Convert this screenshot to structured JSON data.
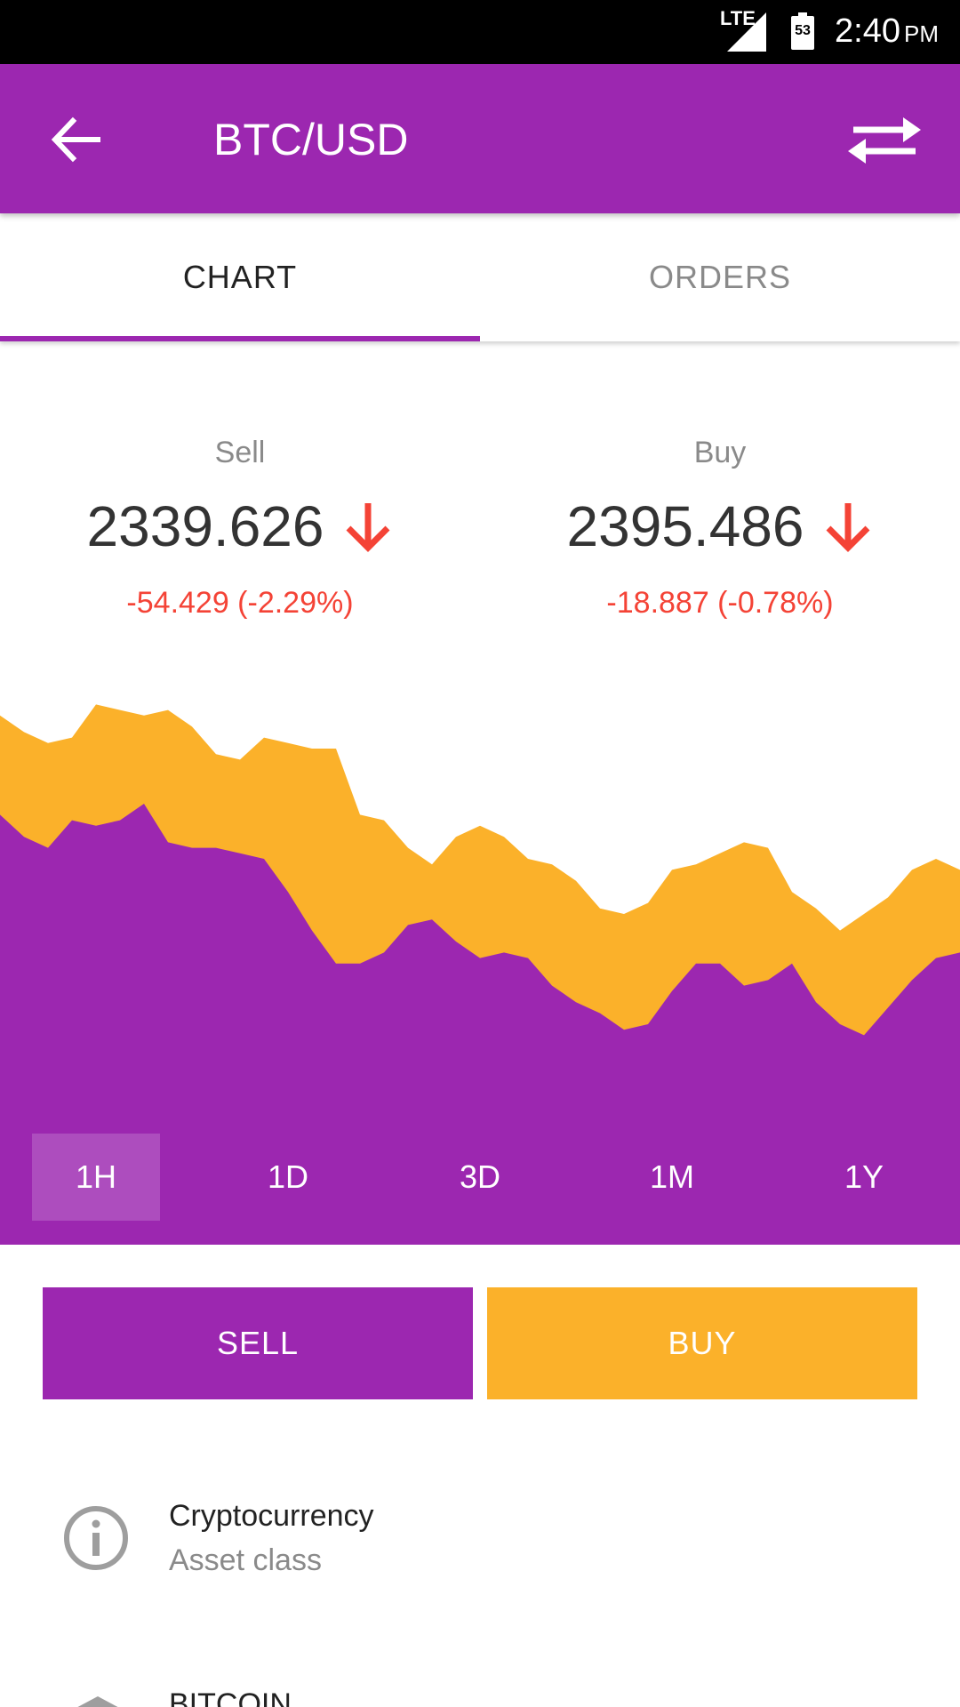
{
  "status": {
    "network": "LTE",
    "battery": "53",
    "time": "2:40",
    "ampm": "PM"
  },
  "appbar": {
    "title": "BTC/USD",
    "back_icon": "arrow-left-icon",
    "swap_icon": "swap-arrows-icon"
  },
  "tabs": [
    {
      "label": "CHART",
      "selected": true
    },
    {
      "label": "ORDERS",
      "selected": false
    }
  ],
  "prices": {
    "sell": {
      "label": "Sell",
      "value": "2339.626",
      "change": "-54.429 (-2.29%)",
      "trend": "down"
    },
    "buy": {
      "label": "Buy",
      "value": "2395.486",
      "change": "-18.887 (-0.78%)",
      "trend": "down"
    }
  },
  "colors": {
    "primary": "#9c27b0",
    "accent": "#fbb12a",
    "negative": "#f44336"
  },
  "chart_data": {
    "type": "area",
    "x": [
      0,
      1,
      2,
      3,
      4,
      5,
      6,
      7,
      8,
      9,
      10,
      11,
      12,
      13,
      14,
      15,
      16,
      17,
      18,
      19,
      20,
      21,
      22,
      23,
      24,
      25,
      26,
      27,
      28,
      29,
      30,
      31,
      32,
      33,
      34,
      35,
      36,
      37,
      38,
      39,
      40
    ],
    "series": [
      {
        "values": [
          0.96,
          0.93,
          0.91,
          0.92,
          0.98,
          0.97,
          0.96,
          0.97,
          0.94,
          0.89,
          0.88,
          0.92,
          0.91,
          0.9,
          0.9,
          0.78,
          0.77,
          0.72,
          0.69,
          0.74,
          0.76,
          0.74,
          0.7,
          0.69,
          0.66,
          0.61,
          0.6,
          0.62,
          0.68,
          0.69,
          0.71,
          0.73,
          0.72,
          0.64,
          0.61,
          0.57,
          0.6,
          0.63,
          0.68,
          0.7,
          0.68
        ]
      },
      {
        "values": [
          0.78,
          0.74,
          0.72,
          0.77,
          0.76,
          0.77,
          0.8,
          0.73,
          0.72,
          0.72,
          0.71,
          0.7,
          0.64,
          0.57,
          0.51,
          0.51,
          0.53,
          0.58,
          0.59,
          0.55,
          0.52,
          0.53,
          0.52,
          0.47,
          0.44,
          0.42,
          0.39,
          0.4,
          0.46,
          0.51,
          0.51,
          0.47,
          0.48,
          0.51,
          0.44,
          0.4,
          0.38,
          0.43,
          0.48,
          0.52,
          0.53
        ]
      }
    ],
    "range_options": [
      "1H",
      "1D",
      "3D",
      "1M",
      "1Y"
    ],
    "selected_range": "1H"
  },
  "actions": {
    "sell": "SELL",
    "buy": "BUY"
  },
  "info": {
    "icon": "info-circle-icon",
    "title": "Cryptocurrency",
    "subtitle": "Asset class"
  },
  "next_item": {
    "icon": "bitcoin-icon",
    "title": "BITCOIN"
  }
}
